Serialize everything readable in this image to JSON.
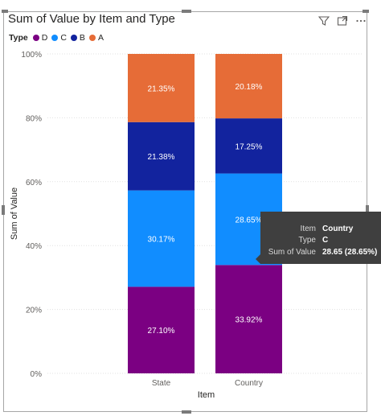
{
  "chart_data": {
    "type": "bar",
    "stacked": "100%",
    "title": "Sum of Value by Item and Type",
    "xlabel": "Item",
    "ylabel": "Sum of Value",
    "categories": [
      "State",
      "Country"
    ],
    "ylim": [
      0,
      100
    ],
    "yticks": [
      "0%",
      "20%",
      "40%",
      "60%",
      "80%",
      "100%"
    ],
    "legend": {
      "title": "Type",
      "position": "top-left"
    },
    "grid": true,
    "series": [
      {
        "name": "D",
        "color": "#7b0082",
        "values": [
          27.1,
          33.92
        ],
        "labels": [
          "27.10%",
          "33.92%"
        ]
      },
      {
        "name": "C",
        "color": "#118dff",
        "values": [
          30.17,
          28.65
        ],
        "labels": [
          "30.17%",
          "28.65%"
        ]
      },
      {
        "name": "B",
        "color": "#12239e",
        "values": [
          21.38,
          17.25
        ],
        "labels": [
          "21.38%",
          "17.25%"
        ]
      },
      {
        "name": "A",
        "color": "#e66c37",
        "values": [
          21.35,
          20.18
        ],
        "labels": [
          "21.35%",
          "20.18%"
        ]
      }
    ]
  },
  "header": {
    "icons": [
      "filter-icon",
      "focus-mode-icon",
      "more-options-icon"
    ]
  },
  "tooltip": {
    "rows": [
      {
        "key": "Item",
        "value": "Country"
      },
      {
        "key": "Type",
        "value": "C"
      },
      {
        "key": "Sum of Value",
        "value": "28.65 (28.65%)"
      }
    ]
  }
}
